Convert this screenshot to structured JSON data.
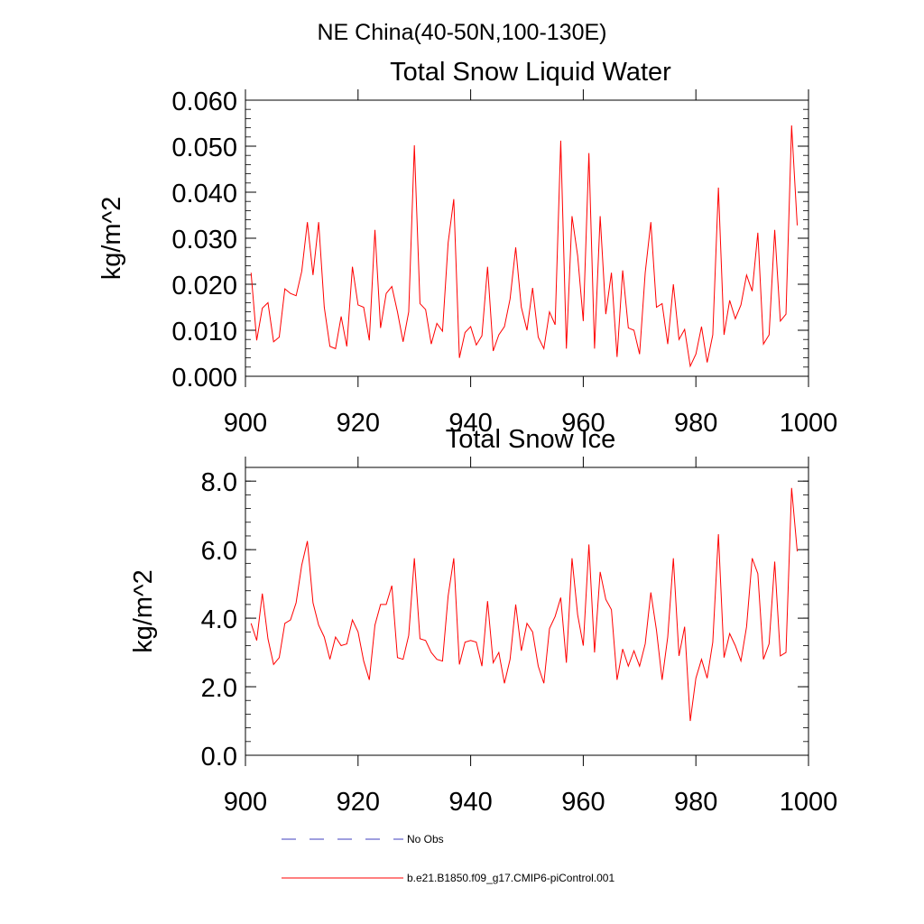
{
  "figure": {
    "suptitle": "NE China(40-50N,100-130E)",
    "legend": [
      {
        "label": "No Obs",
        "color": "#3f3fbf",
        "style": "dashed"
      },
      {
        "label": "b.e21.B1850.f09_g17.CMIP6-piControl.001",
        "color": "#ff0000",
        "style": "solid"
      }
    ]
  },
  "chart_data": [
    {
      "type": "line",
      "title": "Total Snow Liquid Water",
      "xlabel": "",
      "ylabel": "kg/m^2",
      "xlim": [
        900,
        1000
      ],
      "ylim": [
        0.0,
        0.06
      ],
      "xticks": [
        900,
        920,
        940,
        960,
        980,
        1000
      ],
      "xtick_labels": [
        "900",
        "920",
        "940",
        "960",
        "980",
        "1000"
      ],
      "yticks": [
        0.0,
        0.01,
        0.02,
        0.03,
        0.04,
        0.05,
        0.06
      ],
      "ytick_labels": [
        "0.000",
        "0.010",
        "0.020",
        "0.030",
        "0.040",
        "0.050",
        "0.060"
      ],
      "grid": false,
      "series": [
        {
          "name": "b.e21.B1850.f09_g17.CMIP6-piControl.001",
          "color": "#ff0000",
          "x_start": 901,
          "values": [
            0.0225,
            0.0078,
            0.0148,
            0.016,
            0.0075,
            0.0085,
            0.019,
            0.018,
            0.0175,
            0.0228,
            0.0335,
            0.022,
            0.0335,
            0.015,
            0.0065,
            0.006,
            0.013,
            0.0065,
            0.0238,
            0.0155,
            0.015,
            0.0078,
            0.0318,
            0.0105,
            0.018,
            0.0195,
            0.014,
            0.0075,
            0.014,
            0.0502,
            0.0158,
            0.0145,
            0.007,
            0.0115,
            0.0098,
            0.029,
            0.0385,
            0.004,
            0.0095,
            0.0108,
            0.0068,
            0.0088,
            0.0238,
            0.0055,
            0.009,
            0.0108,
            0.0168,
            0.028,
            0.015,
            0.01,
            0.0192,
            0.0085,
            0.006,
            0.014,
            0.0112,
            0.0512,
            0.006,
            0.0348,
            0.0262,
            0.012,
            0.0485,
            0.006,
            0.0348,
            0.0135,
            0.0225,
            0.0042,
            0.023,
            0.0105,
            0.01,
            0.0048,
            0.0225,
            0.0335,
            0.015,
            0.0158,
            0.007,
            0.02,
            0.008,
            0.0102,
            0.0022,
            0.0048,
            0.0108,
            0.003,
            0.009,
            0.041,
            0.009,
            0.0165,
            0.0125,
            0.0155,
            0.022,
            0.0185,
            0.0312,
            0.007,
            0.009,
            0.0318,
            0.012,
            0.0135,
            0.0545,
            0.0328
          ]
        }
      ]
    },
    {
      "type": "line",
      "title": "Total Snow Ice",
      "xlabel": "",
      "ylabel": "kg/m^2",
      "xlim": [
        900,
        1000
      ],
      "ylim": [
        0.0,
        8.4
      ],
      "xticks": [
        900,
        920,
        940,
        960,
        980,
        1000
      ],
      "xtick_labels": [
        "900",
        "920",
        "940",
        "960",
        "980",
        "1000"
      ],
      "yticks": [
        0.0,
        2.0,
        4.0,
        6.0,
        8.0
      ],
      "ytick_labels": [
        "0.0",
        "2.0",
        "4.0",
        "6.0",
        "8.0"
      ],
      "grid": false,
      "series": [
        {
          "name": "b.e21.B1850.f09_g17.CMIP6-piControl.001",
          "color": "#ff0000",
          "x_start": 901,
          "values": [
            3.85,
            3.35,
            4.72,
            3.4,
            2.65,
            2.85,
            3.85,
            3.95,
            4.45,
            5.55,
            6.25,
            4.45,
            3.8,
            3.45,
            2.8,
            3.45,
            3.2,
            3.25,
            3.95,
            3.6,
            2.75,
            2.2,
            3.8,
            4.4,
            4.4,
            4.95,
            2.85,
            2.8,
            3.5,
            5.75,
            3.4,
            3.35,
            3.0,
            2.8,
            2.75,
            4.65,
            5.75,
            2.65,
            3.3,
            3.35,
            3.3,
            2.6,
            4.5,
            2.7,
            3.0,
            2.1,
            2.8,
            4.4,
            3.05,
            3.85,
            3.6,
            2.6,
            2.1,
            3.7,
            4.05,
            4.6,
            2.7,
            5.75,
            4.1,
            3.2,
            6.15,
            3.0,
            5.35,
            4.55,
            4.25,
            2.2,
            3.1,
            2.6,
            3.05,
            2.6,
            3.25,
            4.75,
            3.65,
            2.2,
            3.45,
            5.75,
            2.9,
            3.75,
            1.0,
            2.25,
            2.8,
            2.25,
            3.3,
            6.45,
            2.85,
            3.55,
            3.2,
            2.75,
            3.75,
            5.75,
            5.3,
            2.8,
            3.25,
            5.65,
            2.9,
            3.0,
            7.8,
            5.95
          ]
        }
      ]
    }
  ]
}
